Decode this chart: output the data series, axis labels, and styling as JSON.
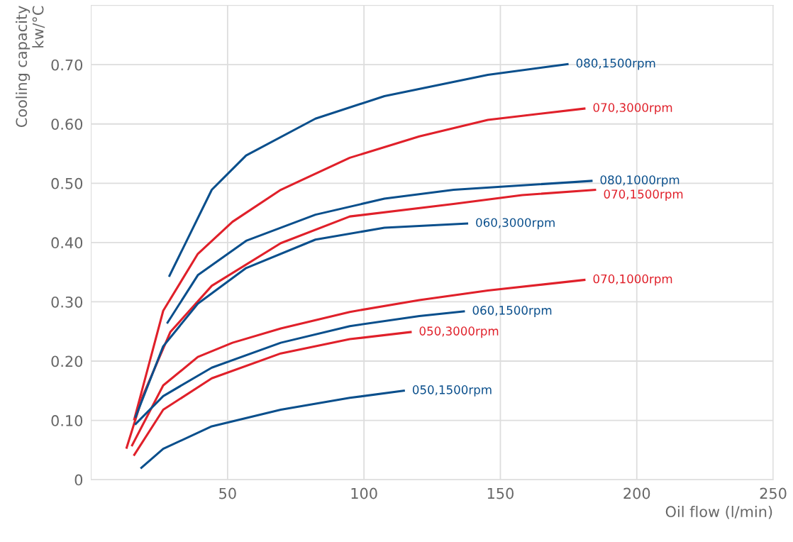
{
  "chart_data": {
    "type": "line",
    "xlabel": "Oil flow (l/min)",
    "ylabel": "Cooling capacity\nkw/°C",
    "xlim": [
      0,
      250
    ],
    "ylim": [
      0,
      0.8
    ],
    "xticks": [
      50,
      100,
      150,
      200,
      250
    ],
    "yticks": [
      {
        "value": 0,
        "label": "0"
      },
      {
        "value": 0.1,
        "label": "0.10"
      },
      {
        "value": 0.2,
        "label": "0.20"
      },
      {
        "value": 0.3,
        "label": "0.30"
      },
      {
        "value": 0.4,
        "label": "0.40"
      },
      {
        "value": 0.5,
        "label": "0.50"
      },
      {
        "value": 0.6,
        "label": "0.60"
      },
      {
        "value": 0.7,
        "label": "0.70"
      }
    ],
    "grid": true,
    "legend": false,
    "marker": "none",
    "line_style": "solid",
    "series": [
      {
        "name": "080,1500rpm",
        "color": "#0a4f8c",
        "x": [
          28.7,
          44.2,
          56.8,
          82.2,
          107.5,
          145.4,
          174.6
        ],
        "values": [
          0.344,
          0.489,
          0.547,
          0.609,
          0.647,
          0.683,
          0.701
        ]
      },
      {
        "name": "070,3000rpm",
        "color": "#e0202a",
        "x": [
          15.8,
          26.4,
          39.1,
          51.8,
          69.5,
          94.8,
          120.3,
          145.4,
          180.8
        ],
        "values": [
          0.102,
          0.285,
          0.381,
          0.435,
          0.489,
          0.543,
          0.579,
          0.607,
          0.626
        ]
      },
      {
        "name": "080,1000rpm",
        "color": "#0a4f8c",
        "x": [
          28,
          39.1,
          56.8,
          82.2,
          107.5,
          132.9,
          183.4
        ],
        "values": [
          0.265,
          0.345,
          0.403,
          0.447,
          0.474,
          0.489,
          0.504
        ]
      },
      {
        "name": "070,1500rpm",
        "color": "#e0202a",
        "x": [
          13,
          18.9,
          29,
          44.2,
          69.5,
          94.8,
          132.8,
          158,
          184.7
        ],
        "values": [
          0.054,
          0.141,
          0.249,
          0.327,
          0.399,
          0.444,
          0.465,
          0.48,
          0.489
        ]
      },
      {
        "name": "060,3000rpm",
        "color": "#0a4f8c",
        "x": [
          16.3,
          26.4,
          39.1,
          56.8,
          82.2,
          107.5,
          137.8
        ],
        "values": [
          0.106,
          0.225,
          0.297,
          0.357,
          0.405,
          0.425,
          0.432
        ]
      },
      {
        "name": "070,1000rpm",
        "color": "#e0202a",
        "x": [
          15,
          26.4,
          39.1,
          51.8,
          69.5,
          94.8,
          120.3,
          145.4,
          180.8
        ],
        "values": [
          0.058,
          0.159,
          0.207,
          0.231,
          0.255,
          0.283,
          0.303,
          0.319,
          0.337
        ]
      },
      {
        "name": "060,1500rpm",
        "color": "#0a4f8c",
        "x": [
          16.3,
          26.4,
          44.2,
          69.5,
          94.8,
          120.3,
          136.6
        ],
        "values": [
          0.094,
          0.141,
          0.189,
          0.231,
          0.259,
          0.276,
          0.284
        ]
      },
      {
        "name": "050,3000rpm",
        "color": "#e0202a",
        "x": [
          15.8,
          26.4,
          44.2,
          69.5,
          94.8,
          117.1
        ],
        "values": [
          0.042,
          0.118,
          0.171,
          0.213,
          0.237,
          0.249
        ]
      },
      {
        "name": "050,1500rpm",
        "color": "#0a4f8c",
        "x": [
          18.4,
          26.4,
          44.2,
          69.5,
          94.8,
          114.6
        ],
        "values": [
          0.02,
          0.052,
          0.09,
          0.118,
          0.138,
          0.15
        ]
      }
    ]
  }
}
